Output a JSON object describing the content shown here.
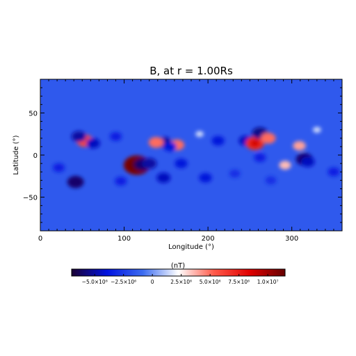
{
  "chart_data": {
    "type": "heatmap",
    "title": "B, at r = 1.00Rs",
    "xlabel": "Longitude (°)",
    "ylabel": "Latitude (°)",
    "xlim": [
      0,
      360
    ],
    "ylim": [
      -90,
      90
    ],
    "x_ticks": [
      0,
      100,
      200,
      300
    ],
    "x_tick_labels": [
      "0",
      "100",
      "200",
      "300"
    ],
    "y_ticks": [
      -50,
      0,
      50
    ],
    "y_tick_labels": [
      "−50",
      "0",
      "50"
    ],
    "grid": false,
    "background_value": -1500000,
    "features": [
      {
        "lon": 115,
        "lat": -12,
        "value": 11000000
      },
      {
        "lon": 122,
        "lat": -11,
        "value": -6000000
      },
      {
        "lon": 130,
        "lat": -10,
        "value": -5000000
      },
      {
        "lon": 53,
        "lat": 17,
        "value": 6000000
      },
      {
        "lon": 46,
        "lat": 22,
        "value": -5000000
      },
      {
        "lon": 63,
        "lat": 14,
        "value": -4500000
      },
      {
        "lon": 42,
        "lat": -32,
        "value": -6000000
      },
      {
        "lon": 148,
        "lat": 15,
        "value": -5000000
      },
      {
        "lon": 138,
        "lat": 15,
        "value": 5000000
      },
      {
        "lon": 163,
        "lat": 12,
        "value": 5000000
      },
      {
        "lon": 155,
        "lat": 10,
        "value": -4000000
      },
      {
        "lon": 147,
        "lat": -27,
        "value": -4500000
      },
      {
        "lon": 168,
        "lat": -10,
        "value": -4000000
      },
      {
        "lon": 197,
        "lat": -27,
        "value": -4000000
      },
      {
        "lon": 212,
        "lat": 17,
        "value": -4000000
      },
      {
        "lon": 245,
        "lat": 17,
        "value": -4500000
      },
      {
        "lon": 256,
        "lat": 14,
        "value": 7000000
      },
      {
        "lon": 262,
        "lat": 26,
        "value": -5500000
      },
      {
        "lon": 272,
        "lat": 20,
        "value": 5000000
      },
      {
        "lon": 262,
        "lat": -3,
        "value": -3500000
      },
      {
        "lon": 292,
        "lat": -12,
        "value": 3500000
      },
      {
        "lon": 309,
        "lat": 11,
        "value": 4000000
      },
      {
        "lon": 315,
        "lat": -5,
        "value": -6000000
      },
      {
        "lon": 319,
        "lat": -8,
        "value": -4500000
      },
      {
        "lon": 22,
        "lat": -15,
        "value": -3500000
      },
      {
        "lon": 90,
        "lat": 22,
        "value": -3500000
      },
      {
        "lon": 96,
        "lat": -31,
        "value": -3500000
      },
      {
        "lon": 350,
        "lat": -20,
        "value": -3500000
      },
      {
        "lon": 330,
        "lat": 30,
        "value": 1500000
      },
      {
        "lon": 190,
        "lat": 25,
        "value": 1500000
      },
      {
        "lon": 232,
        "lat": -22,
        "value": -3000000
      },
      {
        "lon": 275,
        "lat": -30,
        "value": -3000000
      }
    ],
    "colorbar": {
      "label": "(nT)",
      "range": [
        -7000000,
        11500000
      ],
      "tick_values": [
        -5000000,
        -2500000,
        0,
        2500000,
        5000000,
        7500000,
        10000000
      ],
      "tick_labels": [
        "−5.0×10⁶",
        "−2.5×10⁶",
        "0",
        "2.5×10⁶",
        "5.0×10⁶",
        "7.5×10⁶",
        "1.0×10⁷"
      ],
      "colors": [
        "#1a0033",
        "#0012e0",
        "#3c6cf0",
        "#ffffff",
        "#ff5a4a",
        "#e00000",
        "#650000"
      ]
    }
  }
}
